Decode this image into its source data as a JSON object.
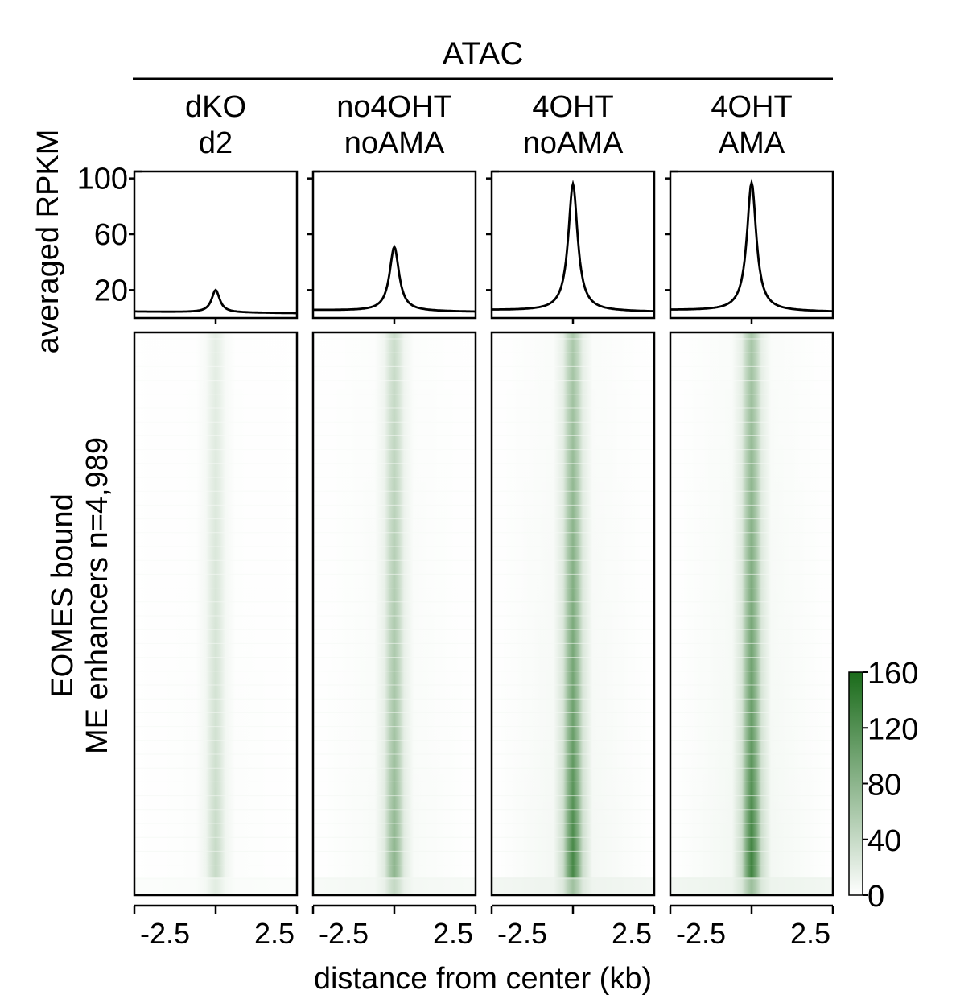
{
  "chart_data": {
    "type": "heatmap",
    "title": "ATAC",
    "profile_ylabel": "averaged RPKM",
    "heatmap_ylabel": [
      "EOMES bound",
      "ME enhancers n=4,989"
    ],
    "xlabel": "distance from center (kb)",
    "profile_ylim": [
      0,
      105
    ],
    "profile_yticks": [
      20,
      60,
      100
    ],
    "profile_ytick_labels": [
      "20",
      "60",
      "100"
    ],
    "x_range_kb": [
      -2.5,
      2.5
    ],
    "xtick_labels": [
      "-2.5",
      "2.5"
    ],
    "colorbar": {
      "min": 0,
      "max": 160,
      "ticks": [
        0,
        40,
        80,
        120,
        160
      ],
      "tick_labels": [
        "0",
        "40",
        "80",
        "120",
        "160"
      ],
      "color_low": "#ffffff",
      "color_high": "#1a6b1a"
    },
    "samples": [
      {
        "label_lines": [
          "dKO",
          "d2"
        ],
        "baseline_rpkm": 4,
        "peak_rpkm": 20,
        "peak_fwhm_kb": 0.3,
        "heatmap_center_max": 40
      },
      {
        "label_lines": [
          "no4OHT",
          "noAMA"
        ],
        "baseline_rpkm": 5,
        "peak_rpkm": 51,
        "peak_fwhm_kb": 0.35,
        "heatmap_center_max": 80
      },
      {
        "label_lines": [
          "4OHT",
          "noAMA"
        ],
        "baseline_rpkm": 5,
        "peak_rpkm": 96,
        "peak_fwhm_kb": 0.35,
        "heatmap_center_max": 130
      },
      {
        "label_lines": [
          "4OHT",
          "AMA"
        ],
        "baseline_rpkm": 5,
        "peak_rpkm": 97,
        "peak_fwhm_kb": 0.35,
        "heatmap_center_max": 135
      }
    ]
  }
}
